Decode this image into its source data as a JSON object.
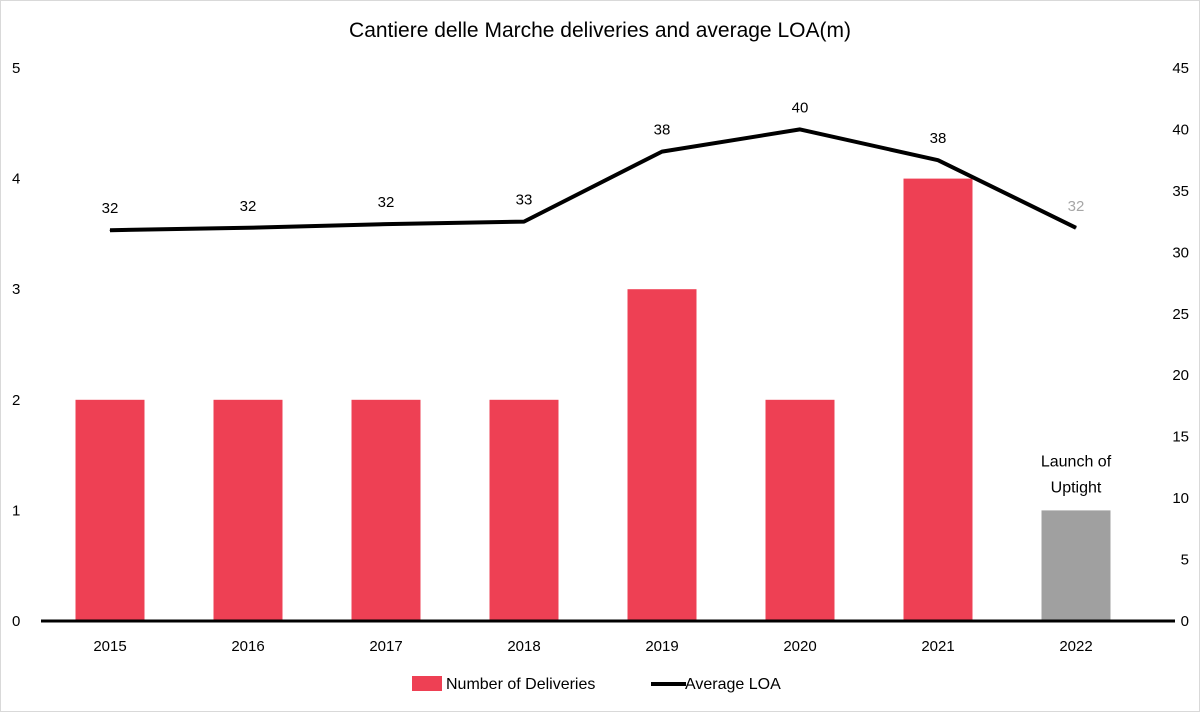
{
  "chart_data": {
    "type": "bar+line",
    "title": "Cantiere delle Marche deliveries and average LOA(m)",
    "categories": [
      "2015",
      "2016",
      "2017",
      "2018",
      "2019",
      "2020",
      "2021",
      "2022"
    ],
    "series": [
      {
        "name": "Number of Deliveries",
        "type": "bar",
        "axis": "left",
        "values": [
          2,
          2,
          2,
          2,
          3,
          2,
          4,
          1
        ],
        "color": "#ee4054",
        "highlight": {
          "index": 7,
          "color": "#a0a0a0"
        }
      },
      {
        "name": "Average LOA",
        "type": "line",
        "axis": "right",
        "values": [
          31.8,
          32.0,
          32.3,
          32.5,
          38.2,
          40.0,
          37.5,
          32.0
        ],
        "data_labels": [
          "32",
          "32",
          "32",
          "33",
          "38",
          "40",
          "38",
          "32"
        ],
        "color": "#000000",
        "faded_label_index": 7,
        "faded_label_color": "#a6a6a6"
      }
    ],
    "y_left": {
      "min": 0,
      "max": 5,
      "ticks": [
        "0",
        "1",
        "2",
        "3",
        "4",
        "5"
      ]
    },
    "y_right": {
      "min": 0,
      "max": 45,
      "ticks": [
        "0",
        "5",
        "10",
        "15",
        "20",
        "25",
        "30",
        "35",
        "40",
        "45"
      ]
    },
    "annotation": {
      "index": 7,
      "lines": [
        "Launch of",
        "Uptight"
      ]
    },
    "grid": false,
    "legend_position": "bottom"
  }
}
